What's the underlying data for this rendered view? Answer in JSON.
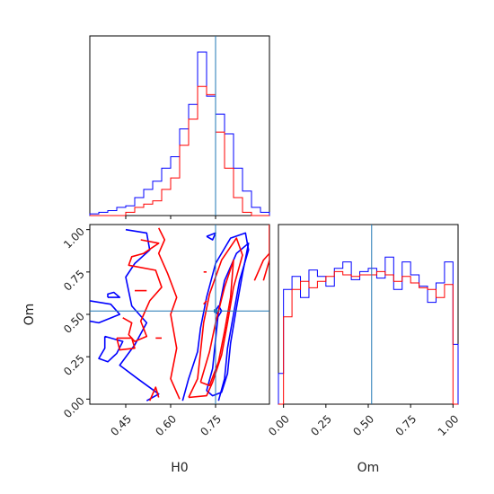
{
  "colors": {
    "series_a": "#0000ff",
    "series_b": "#ff0000",
    "truth": "#1f77b4",
    "frame": "#000000"
  },
  "chart_data": [
    {
      "type": "histogram",
      "panel": "top-left",
      "xlim": [
        0.33,
        0.93
      ],
      "truth_x": 0.75,
      "bin_edges": [
        0.33,
        0.36,
        0.39,
        0.42,
        0.45,
        0.48,
        0.51,
        0.54,
        0.57,
        0.6,
        0.63,
        0.66,
        0.69,
        0.72,
        0.75,
        0.78,
        0.81,
        0.84,
        0.87,
        0.9,
        0.93
      ],
      "series": [
        {
          "color": "blue",
          "counts": [
            0.01,
            0.02,
            0.03,
            0.05,
            0.06,
            0.11,
            0.16,
            0.21,
            0.29,
            0.36,
            0.53,
            0.68,
            1.0,
            0.73,
            0.62,
            0.5,
            0.29,
            0.15,
            0.05,
            0.02
          ]
        },
        {
          "color": "red",
          "counts": [
            0.0,
            0.0,
            0.0,
            0.0,
            0.02,
            0.05,
            0.07,
            0.09,
            0.16,
            0.23,
            0.43,
            0.59,
            0.79,
            0.74,
            0.51,
            0.29,
            0.11,
            0.02,
            0.0,
            0.0
          ]
        }
      ]
    },
    {
      "type": "contour",
      "panel": "bottom-left",
      "xlabel": "H0",
      "ylabel": "Om",
      "xlim": [
        0.33,
        0.93
      ],
      "ylim": [
        -0.03,
        1.03
      ],
      "x_ticks": [
        "0.45",
        "0.60",
        "0.75"
      ],
      "y_ticks": [
        "0.00",
        "0.25",
        "0.50",
        "0.75",
        "1.00"
      ],
      "truth": {
        "x": 0.75,
        "y": 0.52
      },
      "contours": [
        {
          "color": "blue",
          "points": [
            [
              0.45,
              1.0
            ],
            [
              0.52,
              0.98
            ],
            [
              0.53,
              0.88
            ],
            [
              0.48,
              0.8
            ],
            [
              0.45,
              0.72
            ],
            [
              0.47,
              0.55
            ],
            [
              0.52,
              0.45
            ],
            [
              0.48,
              0.32
            ],
            [
              0.43,
              0.2
            ],
            [
              0.49,
              0.12
            ],
            [
              0.56,
              0.03
            ],
            [
              0.52,
              -0.01
            ]
          ]
        },
        {
          "color": "blue",
          "points": [
            [
              0.33,
              0.58
            ],
            [
              0.4,
              0.56
            ],
            [
              0.43,
              0.5
            ],
            [
              0.36,
              0.45
            ],
            [
              0.33,
              0.46
            ]
          ]
        },
        {
          "color": "blue",
          "points": [
            [
              0.39,
              0.6
            ],
            [
              0.43,
              0.6
            ],
            [
              0.41,
              0.63
            ],
            [
              0.39,
              0.62
            ],
            [
              0.39,
              0.6
            ]
          ]
        },
        {
          "color": "blue",
          "points": [
            [
              0.38,
              0.37
            ],
            [
              0.44,
              0.34
            ],
            [
              0.42,
              0.27
            ],
            [
              0.39,
              0.22
            ],
            [
              0.36,
              0.24
            ],
            [
              0.38,
              0.3
            ],
            [
              0.38,
              0.37
            ]
          ]
        },
        {
          "color": "blue",
          "points": [
            [
              0.64,
              -0.01
            ],
            [
              0.66,
              0.12
            ],
            [
              0.69,
              0.28
            ],
            [
              0.7,
              0.42
            ],
            [
              0.72,
              0.6
            ],
            [
              0.75,
              0.8
            ],
            [
              0.8,
              0.95
            ],
            [
              0.85,
              0.98
            ],
            [
              0.86,
              0.88
            ],
            [
              0.83,
              0.7
            ],
            [
              0.81,
              0.5
            ],
            [
              0.79,
              0.3
            ],
            [
              0.78,
              0.12
            ],
            [
              0.76,
              -0.01
            ]
          ]
        },
        {
          "color": "blue",
          "points": [
            [
              0.72,
              0.05
            ],
            [
              0.74,
              0.18
            ],
            [
              0.75,
              0.35
            ],
            [
              0.76,
              0.52
            ],
            [
              0.78,
              0.7
            ],
            [
              0.82,
              0.86
            ],
            [
              0.86,
              0.92
            ],
            [
              0.84,
              0.74
            ],
            [
              0.82,
              0.54
            ],
            [
              0.8,
              0.33
            ],
            [
              0.79,
              0.15
            ],
            [
              0.77,
              0.04
            ],
            [
              0.74,
              0.02
            ],
            [
              0.72,
              0.05
            ]
          ]
        },
        {
          "color": "blue",
          "points": [
            [
              0.75,
              0.52
            ],
            [
              0.76,
              0.55
            ],
            [
              0.77,
              0.52
            ],
            [
              0.76,
              0.49
            ],
            [
              0.75,
              0.52
            ]
          ]
        },
        {
          "color": "blue",
          "points": [
            [
              0.72,
              0.96
            ],
            [
              0.75,
              0.98
            ],
            [
              0.74,
              0.94
            ],
            [
              0.72,
              0.96
            ]
          ]
        },
        {
          "color": "red",
          "points": [
            [
              0.56,
              1.01
            ],
            [
              0.58,
              0.94
            ],
            [
              0.56,
              0.86
            ],
            [
              0.59,
              0.74
            ],
            [
              0.62,
              0.6
            ],
            [
              0.6,
              0.5
            ],
            [
              0.62,
              0.3
            ],
            [
              0.6,
              0.12
            ],
            [
              0.63,
              0.0
            ]
          ]
        },
        {
          "color": "red",
          "points": [
            [
              0.5,
              0.94
            ],
            [
              0.56,
              0.92
            ],
            [
              0.51,
              0.86
            ],
            [
              0.47,
              0.84
            ],
            [
              0.46,
              0.79
            ],
            [
              0.55,
              0.76
            ],
            [
              0.57,
              0.66
            ],
            [
              0.53,
              0.58
            ],
            [
              0.5,
              0.46
            ],
            [
              0.52,
              0.37
            ],
            [
              0.48,
              0.34
            ],
            [
              0.46,
              0.38
            ],
            [
              0.47,
              0.45
            ],
            [
              0.44,
              0.48
            ]
          ]
        },
        {
          "color": "red",
          "points": [
            [
              0.42,
              0.36
            ],
            [
              0.47,
              0.36
            ],
            [
              0.48,
              0.3
            ],
            [
              0.43,
              0.29
            ],
            [
              0.42,
              0.36
            ]
          ]
        },
        {
          "color": "red",
          "points": [
            [
              0.53,
              -0.01
            ],
            [
              0.55,
              0.07
            ],
            [
              0.56,
              0.01
            ]
          ]
        },
        {
          "color": "red",
          "points": [
            [
              0.66,
              0.01
            ],
            [
              0.69,
              0.12
            ],
            [
              0.7,
              0.28
            ],
            [
              0.71,
              0.45
            ],
            [
              0.73,
              0.62
            ],
            [
              0.77,
              0.82
            ],
            [
              0.82,
              0.95
            ],
            [
              0.84,
              0.85
            ],
            [
              0.81,
              0.66
            ],
            [
              0.79,
              0.45
            ],
            [
              0.77,
              0.26
            ],
            [
              0.74,
              0.1
            ],
            [
              0.72,
              0.02
            ],
            [
              0.66,
              0.01
            ]
          ]
        },
        {
          "color": "red",
          "points": [
            [
              0.7,
              0.1
            ],
            [
              0.73,
              0.28
            ],
            [
              0.75,
              0.45
            ],
            [
              0.78,
              0.66
            ],
            [
              0.81,
              0.82
            ],
            [
              0.8,
              0.6
            ],
            [
              0.78,
              0.4
            ],
            [
              0.76,
              0.22
            ],
            [
              0.73,
              0.08
            ],
            [
              0.7,
              0.1
            ]
          ]
        },
        {
          "color": "red",
          "points": [
            [
              0.88,
              0.7
            ],
            [
              0.91,
              0.82
            ],
            [
              0.93,
              0.86
            ]
          ]
        },
        {
          "color": "red",
          "points": [
            [
              0.91,
              0.7
            ],
            [
              0.93,
              0.82
            ],
            [
              0.93,
              1.03
            ]
          ]
        },
        {
          "color": "red",
          "points": [
            [
              0.71,
              0.56
            ],
            [
              0.72,
              0.58
            ]
          ]
        },
        {
          "color": "red",
          "points": [
            [
              0.71,
              0.75
            ],
            [
              0.72,
              0.75
            ]
          ]
        },
        {
          "color": "red",
          "points": [
            [
              0.48,
              0.64
            ],
            [
              0.52,
              0.64
            ]
          ]
        },
        {
          "color": "red",
          "points": [
            [
              0.55,
              0.36
            ],
            [
              0.57,
              0.36
            ]
          ]
        }
      ]
    },
    {
      "type": "histogram",
      "panel": "bottom-right",
      "xlabel": "Om",
      "xlim": [
        -0.03,
        1.03
      ],
      "truth_x": 0.52,
      "x_ticks": [
        "0.00",
        "0.25",
        "0.50",
        "0.75",
        "1.00"
      ],
      "bin_edges": [
        -0.03,
        0.0,
        0.05,
        0.1,
        0.15,
        0.2,
        0.25,
        0.3,
        0.35,
        0.4,
        0.45,
        0.5,
        0.55,
        0.6,
        0.65,
        0.7,
        0.75,
        0.8,
        0.85,
        0.9,
        0.95,
        1.0,
        1.03
      ],
      "series": [
        {
          "color": "blue",
          "counts": [
            0.19,
            0.71,
            0.79,
            0.66,
            0.83,
            0.79,
            0.73,
            0.84,
            0.88,
            0.77,
            0.82,
            0.84,
            0.78,
            0.91,
            0.71,
            0.88,
            0.8,
            0.73,
            0.63,
            0.75,
            0.88,
            0.37
          ]
        },
        {
          "color": "red",
          "counts": [
            0.0,
            0.54,
            0.71,
            0.76,
            0.72,
            0.76,
            0.79,
            0.82,
            0.8,
            0.79,
            0.8,
            0.8,
            0.82,
            0.8,
            0.76,
            0.79,
            0.75,
            0.72,
            0.71,
            0.66,
            0.74,
            0.0
          ]
        }
      ]
    }
  ]
}
